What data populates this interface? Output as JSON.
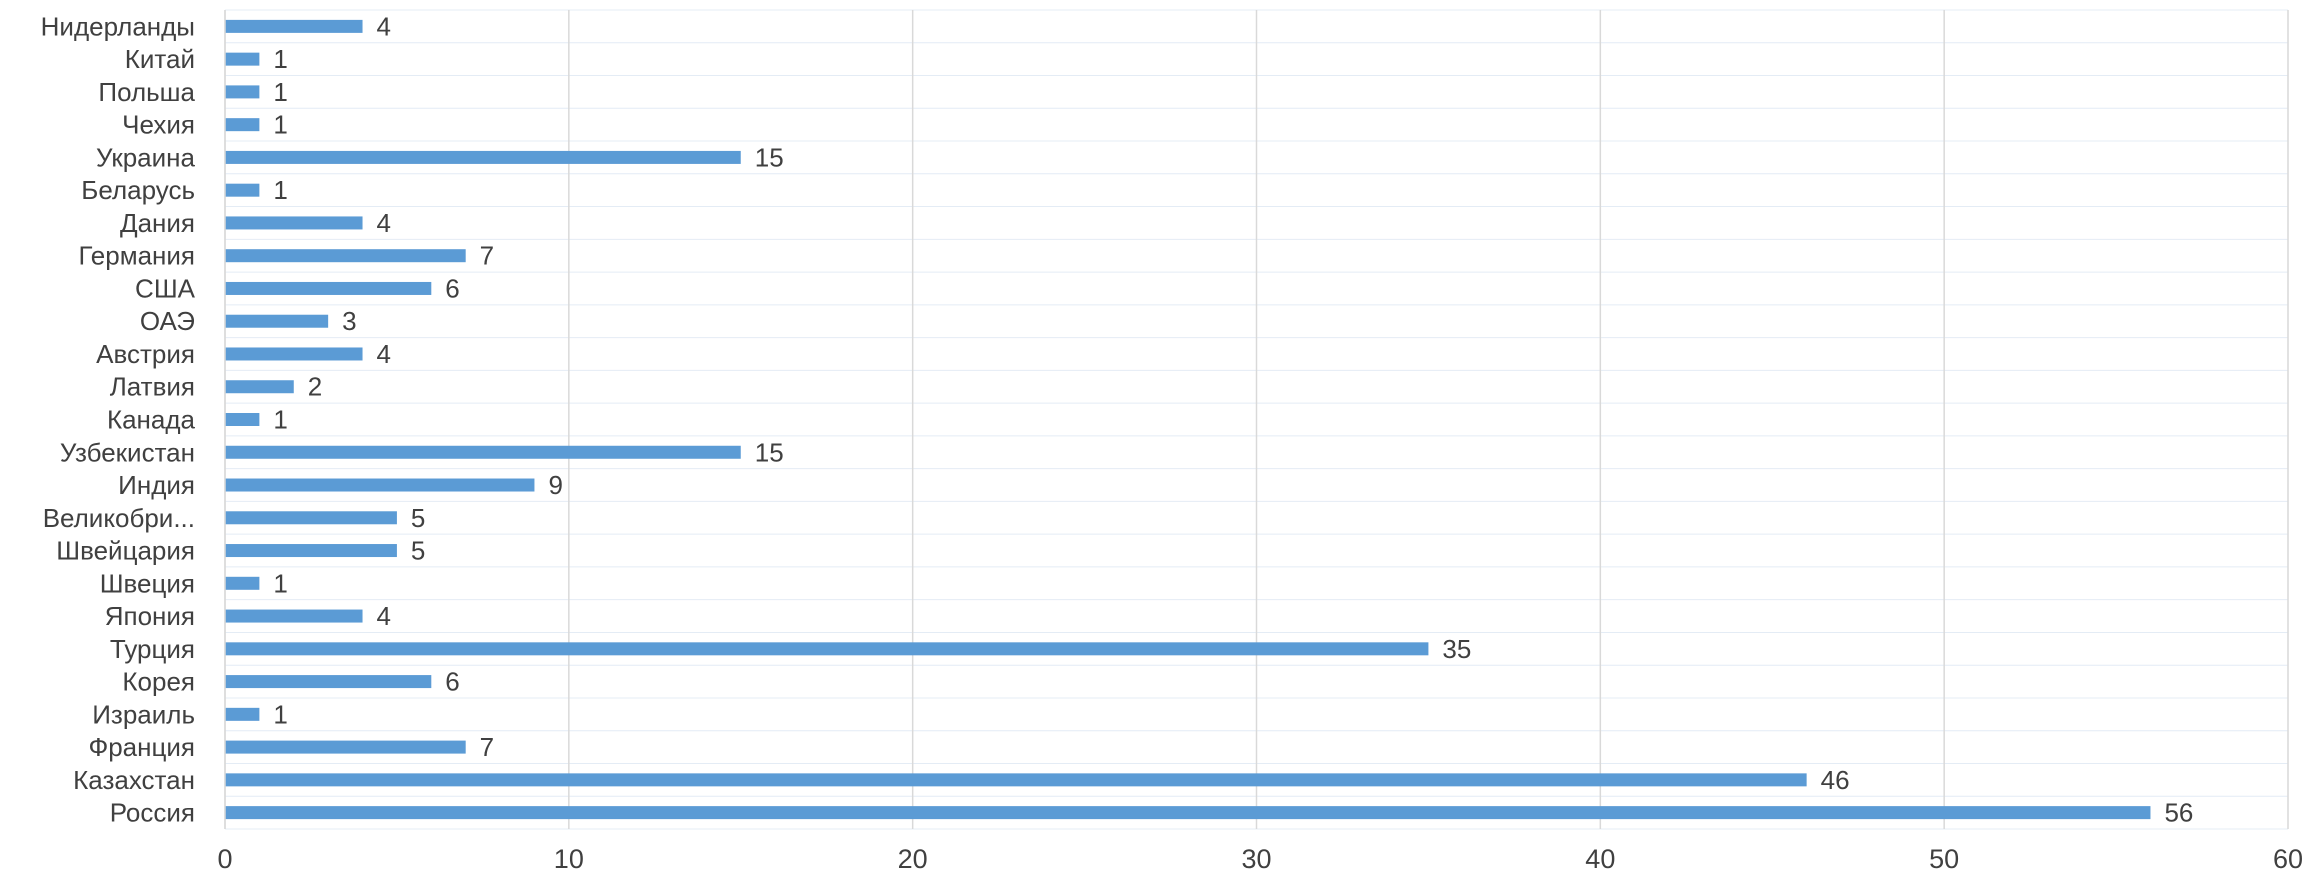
{
  "chart_data": {
    "type": "bar",
    "orientation": "horizontal",
    "categories": [
      "Россия",
      "Казахстан",
      "Франция",
      "Израиль",
      "Корея",
      "Турция",
      "Япония",
      "Швеция",
      "Швейцария",
      "Великобри...",
      "Индия",
      "Узбекистан",
      "Канада",
      "Латвия",
      "Австрия",
      "ОАЭ",
      "США",
      "Германия",
      "Дания",
      "Беларусь",
      "Украина",
      "Чехия",
      "Польша",
      "Китай",
      "Нидерланды"
    ],
    "values": [
      56,
      46,
      7,
      1,
      6,
      35,
      4,
      1,
      5,
      5,
      9,
      15,
      1,
      2,
      4,
      3,
      6,
      7,
      4,
      1,
      15,
      1,
      1,
      1,
      4
    ],
    "xlim": [
      0,
      60
    ],
    "xticks": [
      0,
      10,
      20,
      30,
      40,
      50,
      60
    ],
    "grid": true,
    "data_labels": true,
    "colors": {
      "bar": "#5B9BD5",
      "grid": "#D9D9D9",
      "text": "#404040"
    }
  }
}
